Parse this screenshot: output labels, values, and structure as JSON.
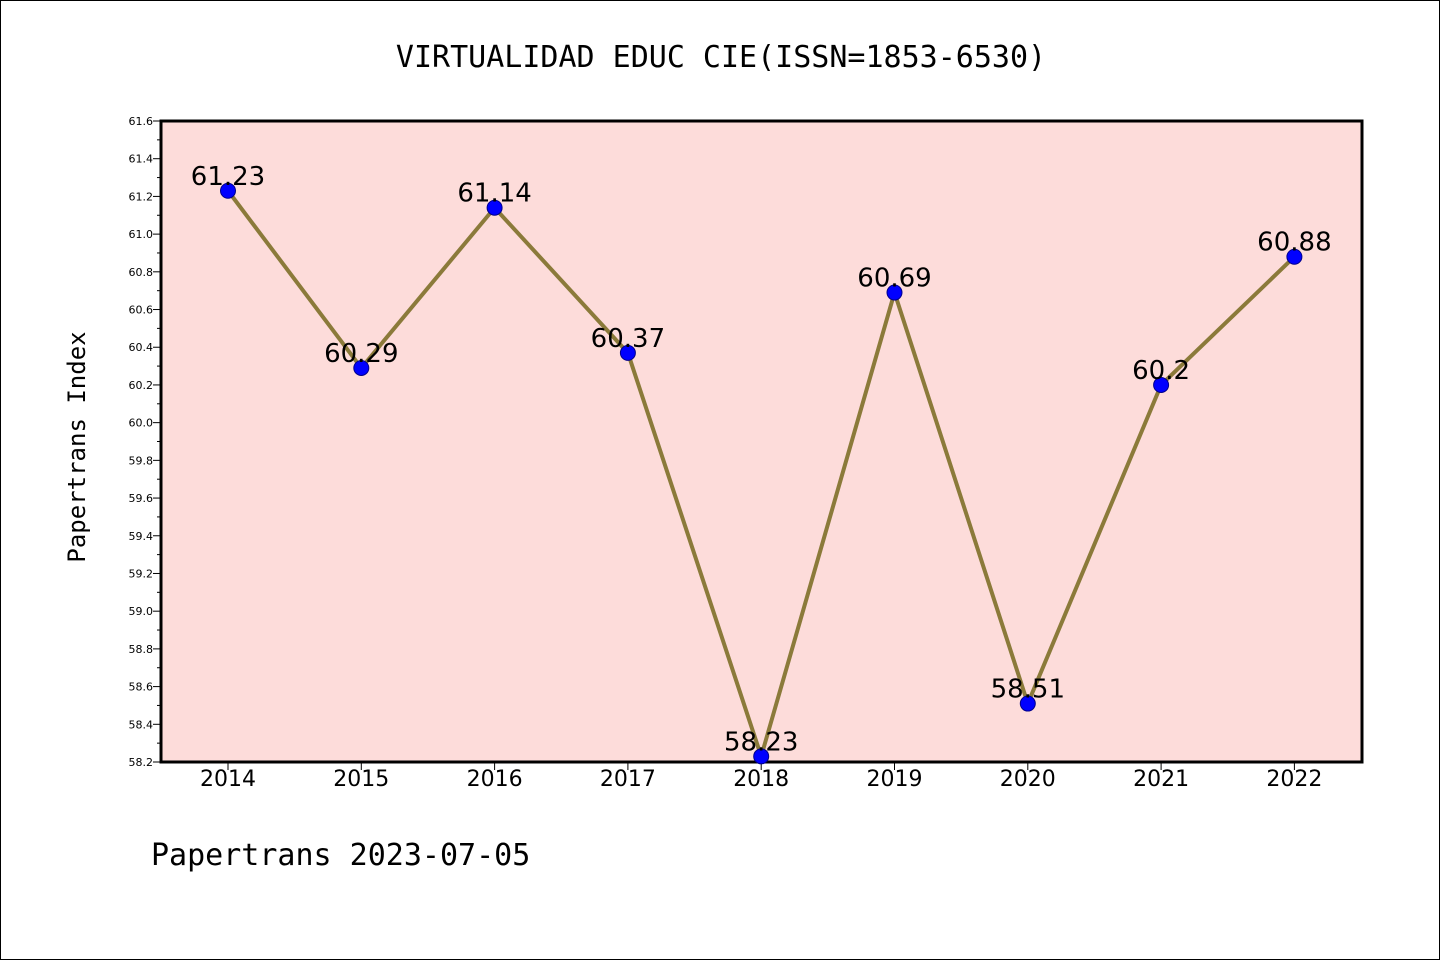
{
  "chart_data": {
    "type": "line",
    "title": "VIRTUALIDAD EDUC CIE(ISSN=1853-6530)",
    "ylabel": "Papertrans Index",
    "xlabel": "",
    "footer": "Papertrans 2023-07-05",
    "x": [
      "2014",
      "2015",
      "2016",
      "2017",
      "2018",
      "2019",
      "2020",
      "2021",
      "2022"
    ],
    "values": [
      61.23,
      60.29,
      61.14,
      60.37,
      58.23,
      60.69,
      58.51,
      60.2,
      60.88
    ],
    "data_labels": [
      "61.23",
      "60.29",
      "61.14",
      "60.37",
      "58.23",
      "60.69",
      "58.51",
      "60.2",
      "60.88"
    ],
    "ylim": [
      58.2,
      61.6
    ],
    "yticks": [
      "58.2",
      "58.4",
      "58.6",
      "58.8",
      "59.0",
      "59.2",
      "59.4",
      "59.6",
      "59.8",
      "60.0",
      "60.2",
      "60.4",
      "60.6",
      "60.8",
      "61.0",
      "61.2",
      "61.4",
      "61.6"
    ],
    "grid": false,
    "colors": {
      "plot_background": "#fddcda",
      "line": "#8b7a3a",
      "marker": "#0000ff"
    }
  }
}
